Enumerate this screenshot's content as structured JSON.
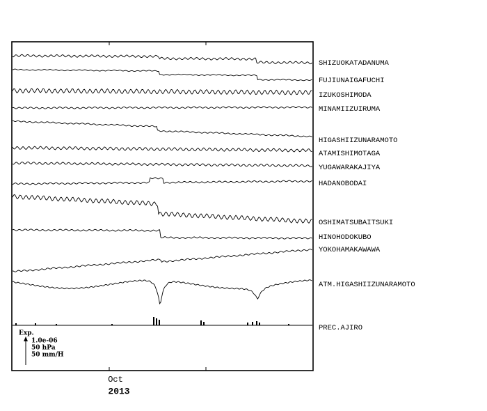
{
  "stations": [
    "SHIZUOKATADANUMA",
    "FUJIUNAIGAFUCHI",
    "IZUKOSHIMODA",
    "MINAMIIZUIRUMA",
    "HIGASHIIZUNARAMOTO",
    "ATAMISHIMOTAGA",
    "YUGAWARAKAJIYA",
    "HADANOBODAI",
    "OSHIMATSUBAITSUKI",
    "HINOHODOKUBO",
    "YOKOHAMAKAWAWA",
    "ATM.HIGASHIIZUNARAMOTO",
    "PREC.AJIRO"
  ],
  "scale": {
    "title": "Exp.",
    "strain": "1.0e-06",
    "pressure": "50 hPa",
    "rain": "50 mm/H"
  },
  "x_axis": {
    "month": "Oct",
    "year": "2013"
  }
}
